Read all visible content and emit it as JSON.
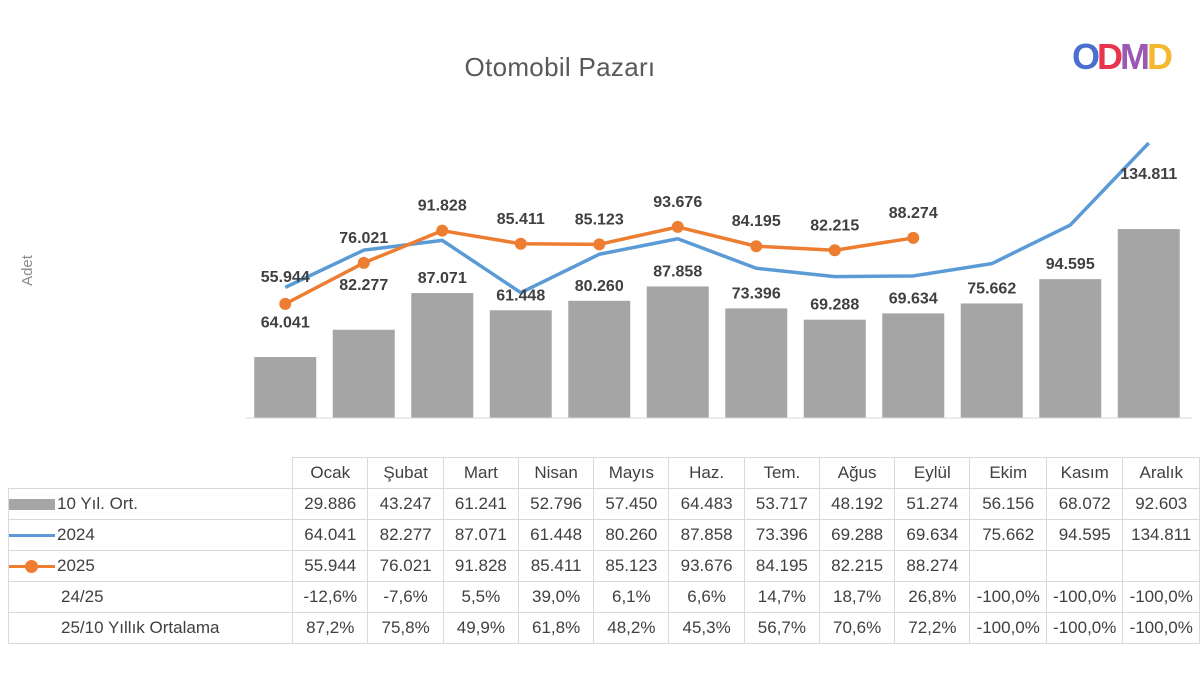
{
  "chart_data": {
    "type": "bar+line",
    "title": "Otomobil Pazarı",
    "ylabel": "Adet",
    "categories": [
      "Ocak",
      "Şubat",
      "Mart",
      "Nisan",
      "Mayıs",
      "Haz.",
      "Tem.",
      "Ağus",
      "Eylül",
      "Ekim",
      "Kasım",
      "Aralık"
    ],
    "ylim": [
      0,
      150000
    ],
    "series": [
      {
        "name": "10 Yıl. Ort.",
        "type": "bar",
        "color": "#a5a5a5",
        "values": [
          29886,
          43247,
          61241,
          52796,
          57450,
          64483,
          53717,
          48192,
          51274,
          56156,
          68072,
          92603
        ],
        "display": [
          "29.886",
          "43.247",
          "61.241",
          "52.796",
          "57.450",
          "64.483",
          "53.717",
          "48.192",
          "51.274",
          "56.156",
          "68.072",
          "92.603"
        ]
      },
      {
        "name": "2024",
        "type": "line",
        "color": "#5b9bd5",
        "values": [
          64041,
          82277,
          87071,
          61448,
          80260,
          87858,
          73396,
          69288,
          69634,
          75662,
          94595,
          134811
        ],
        "display": [
          "64.041",
          "82.277",
          "87.071",
          "61.448",
          "80.260",
          "87.858",
          "73.396",
          "69.288",
          "69.634",
          "75.662",
          "94.595",
          "134.811"
        ]
      },
      {
        "name": "2025",
        "type": "line",
        "color": "#ed7d31",
        "values": [
          55944,
          76021,
          91828,
          85411,
          85123,
          93676,
          84195,
          82215,
          88274,
          null,
          null,
          null
        ],
        "display": [
          "55.944",
          "76.021",
          "91.828",
          "85.411",
          "85.123",
          "93.676",
          "84.195",
          "82.215",
          "88.274",
          "",
          "",
          ""
        ]
      }
    ],
    "table_rows": [
      {
        "label": "24/25",
        "display": [
          "-12,6%",
          "-7,6%",
          "5,5%",
          "39,0%",
          "6,1%",
          "6,6%",
          "14,7%",
          "18,7%",
          "26,8%",
          "-100,0%",
          "-100,0%",
          "-100,0%"
        ]
      },
      {
        "label": "25/10 Yıllık Ortalama",
        "display": [
          "87,2%",
          "75,8%",
          "49,9%",
          "61,8%",
          "48,2%",
          "45,3%",
          "56,7%",
          "70,6%",
          "72,2%",
          "-100,0%",
          "-100,0%",
          "-100,0%"
        ]
      }
    ]
  },
  "logo": {
    "text": "ODMD",
    "letters": [
      "O",
      "D",
      "M",
      "D"
    ],
    "colors": [
      "#4a6fd1",
      "#e8344e",
      "#9b59b6",
      "#f5b82e"
    ]
  }
}
